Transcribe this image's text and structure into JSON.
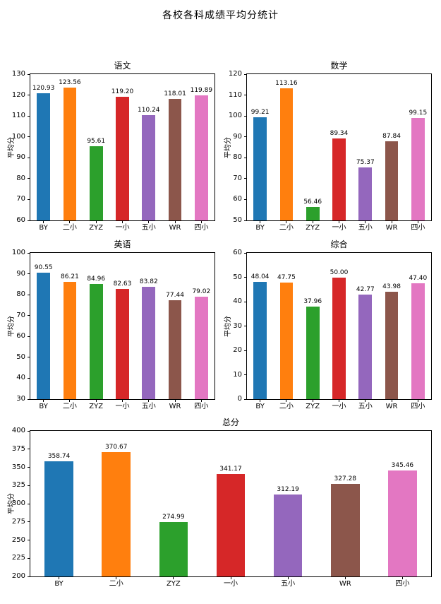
{
  "figure": {
    "title": "各校各科成绩平均分统计"
  },
  "categories": [
    "BY",
    "二小",
    "ZYZ",
    "一小",
    "五小",
    "WR",
    "四小"
  ],
  "bar_colors": [
    "#1f77b4",
    "#ff7f0e",
    "#2ca02c",
    "#d62728",
    "#9467bd",
    "#8c564b",
    "#e377c2"
  ],
  "chart_data": [
    {
      "type": "bar",
      "title": "语文",
      "ylabel": "平均分",
      "xlabel": "",
      "categories": [
        "BY",
        "二小",
        "ZYZ",
        "一小",
        "五小",
        "WR",
        "四小"
      ],
      "values": [
        120.93,
        123.56,
        95.61,
        119.2,
        110.24,
        118.01,
        119.89
      ],
      "value_labels": [
        "120.93",
        "123.56",
        "95.61",
        "119.20",
        "110.24",
        "118.01",
        "119.89"
      ],
      "ylim": [
        60,
        130
      ],
      "ytick_step": 10,
      "grid": false,
      "legend": "none"
    },
    {
      "type": "bar",
      "title": "数学",
      "ylabel": "平均分",
      "xlabel": "",
      "categories": [
        "BY",
        "二小",
        "ZYZ",
        "一小",
        "五小",
        "WR",
        "四小"
      ],
      "values": [
        99.21,
        113.16,
        56.46,
        89.34,
        75.37,
        87.84,
        99.15
      ],
      "value_labels": [
        "99.21",
        "113.16",
        "56.46",
        "89.34",
        "75.37",
        "87.84",
        "99.15"
      ],
      "ylim": [
        50,
        120
      ],
      "ytick_step": 10,
      "grid": false,
      "legend": "none"
    },
    {
      "type": "bar",
      "title": "英语",
      "ylabel": "平均分",
      "xlabel": "",
      "categories": [
        "BY",
        "二小",
        "ZYZ",
        "一小",
        "五小",
        "WR",
        "四小"
      ],
      "values": [
        90.55,
        86.21,
        84.96,
        82.63,
        83.82,
        77.44,
        79.02
      ],
      "value_labels": [
        "90.55",
        "86.21",
        "84.96",
        "82.63",
        "83.82",
        "77.44",
        "79.02"
      ],
      "ylim": [
        30,
        100
      ],
      "ytick_step": 10,
      "grid": false,
      "legend": "none"
    },
    {
      "type": "bar",
      "title": "综合",
      "ylabel": "平均分",
      "xlabel": "",
      "categories": [
        "BY",
        "二小",
        "ZYZ",
        "一小",
        "五小",
        "WR",
        "四小"
      ],
      "values": [
        48.04,
        47.75,
        37.96,
        50.0,
        42.77,
        43.98,
        47.4
      ],
      "value_labels": [
        "48.04",
        "47.75",
        "37.96",
        "50.00",
        "42.77",
        "43.98",
        "47.40"
      ],
      "ylim": [
        0,
        60
      ],
      "ytick_step": 10,
      "grid": false,
      "legend": "none"
    },
    {
      "type": "bar",
      "title": "总分",
      "ylabel": "平均分",
      "xlabel": "",
      "categories": [
        "BY",
        "二小",
        "ZYZ",
        "一小",
        "五小",
        "WR",
        "四小"
      ],
      "values": [
        358.74,
        370.67,
        274.99,
        341.17,
        312.19,
        327.28,
        345.46
      ],
      "value_labels": [
        "358.74",
        "370.67",
        "274.99",
        "341.17",
        "312.19",
        "327.28",
        "345.46"
      ],
      "ylim": [
        200,
        400
      ],
      "ytick_step": 25,
      "grid": false,
      "legend": "none"
    }
  ]
}
